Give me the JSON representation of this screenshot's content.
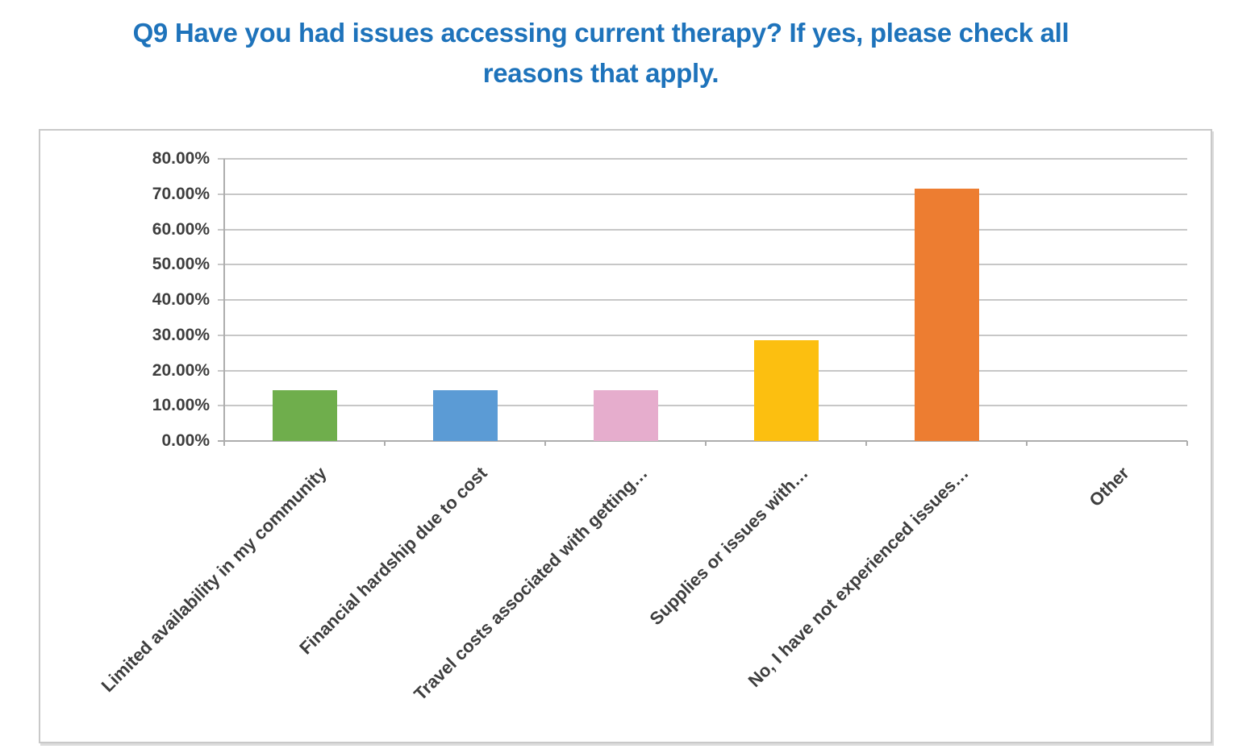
{
  "header": {
    "title_lines": [
      "Q9 Have you had issues accessing current therapy? If yes, please check all",
      "reasons that apply."
    ]
  },
  "chart_data": {
    "type": "bar",
    "title": "Q9 Have you had issues accessing current therapy? If yes, please check all reasons that apply.",
    "categories": [
      "Limited availability in my community",
      "Financial hardship due to cost",
      "Travel costs associated with getting…",
      "Supplies or issues with…",
      "No, I have not experienced issues…",
      "Other"
    ],
    "values": [
      14.29,
      14.29,
      14.29,
      28.57,
      71.43,
      0
    ],
    "bar_colors": [
      "#6FAE4C",
      "#5B9BD5",
      "#E6ADCD",
      "#FCBF10",
      "#ED7D31",
      null
    ],
    "y_ticks": [
      "80.00%",
      "70.00%",
      "60.00%",
      "50.00%",
      "40.00%",
      "30.00%",
      "20.00%",
      "10.00%",
      "0.00%"
    ],
    "ylim": [
      0,
      80
    ],
    "y_step": 10,
    "xlabel": "",
    "ylabel": "",
    "grid": "horizontal",
    "legend_position": "none",
    "x_tick_rotation_deg": 45
  },
  "colors": {
    "title": "#1E73BB",
    "tick_label": "#3E3E3E",
    "gridline": "#C7C7C7",
    "axis_line": "#ADADAD",
    "chart_border": "#C9C9C9",
    "background": "#FFFFFF"
  }
}
